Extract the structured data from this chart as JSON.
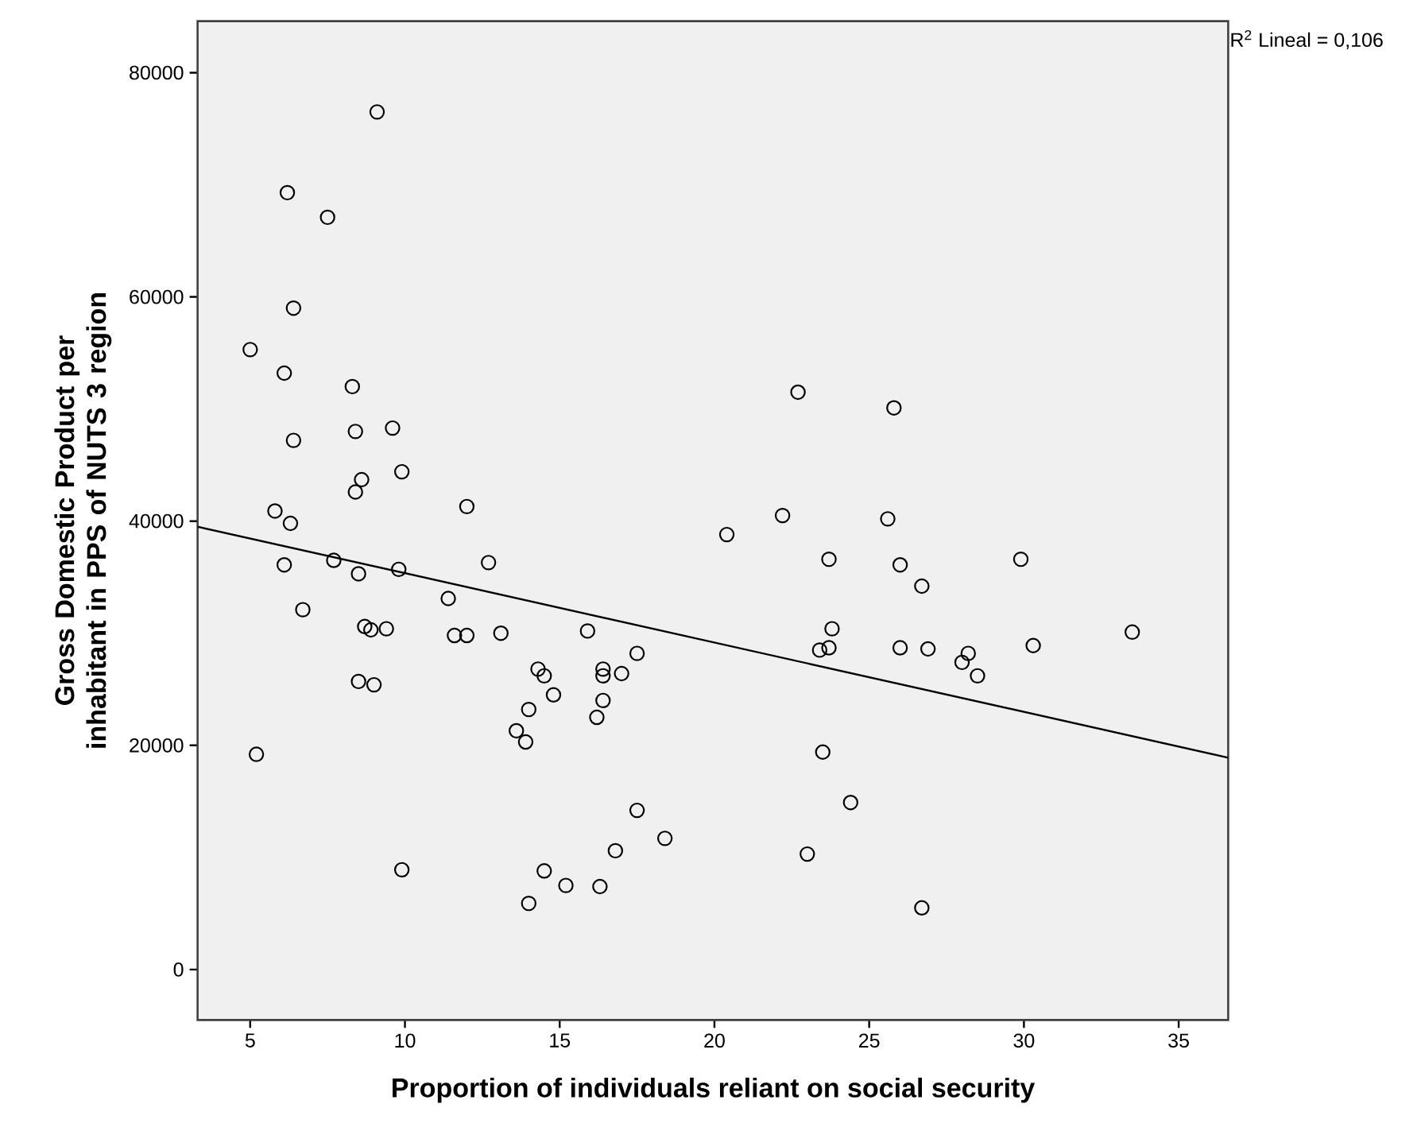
{
  "chart_data": {
    "type": "scatter",
    "xlabel": "Proportion of individuals reliant on social security",
    "ylabel": "Gross Domestic Product per inhabitant in PPS of NUTS 3 region",
    "annotations": [
      "R$^{2}$ Lineal = 0,106"
    ],
    "xlim": [
      3.3,
      36.6
    ],
    "ylim": [
      -4500,
      84600
    ],
    "xticks": [
      5,
      10,
      15,
      20,
      25,
      30,
      35
    ],
    "yticks": [
      0,
      20000,
      40000,
      60000,
      80000
    ],
    "marker": "circle",
    "series": [
      {
        "color": "#000000",
        "x": [
          9.1,
          6.2,
          7.5,
          6.4,
          5.0,
          6.1,
          8.3,
          8.4,
          9.6,
          6.4,
          9.9,
          8.6,
          8.4,
          12.0,
          5.8,
          6.3,
          22.7,
          25.8,
          22.2,
          25.6,
          20.4,
          23.7,
          26.0,
          29.9,
          26.7,
          23.8,
          33.5,
          23.4,
          23.7,
          26.0,
          26.9,
          28.2,
          28.0,
          28.5,
          30.3,
          23.5,
          24.4,
          23.0,
          26.7,
          6.1,
          7.7,
          8.5,
          9.8,
          12.7,
          6.7,
          11.4,
          8.7,
          8.9,
          9.4,
          11.6,
          12.0,
          13.1,
          15.9,
          17.5,
          14.3,
          14.5,
          16.4,
          16.4,
          17.0,
          8.5,
          9.0,
          14.8,
          16.4,
          14.0,
          16.2,
          13.6,
          13.9,
          5.2,
          17.5,
          18.4,
          16.8,
          9.9,
          14.5,
          15.2,
          16.3,
          14.0
        ],
        "values": [
          76500,
          69300,
          67100,
          59000,
          55300,
          53200,
          52000,
          48000,
          48300,
          47200,
          44400,
          43700,
          42600,
          41300,
          40900,
          39800,
          51500,
          50100,
          40500,
          40200,
          38800,
          36600,
          36100,
          36600,
          34200,
          30400,
          30100,
          28500,
          28700,
          28700,
          28600,
          28200,
          27400,
          26200,
          28900,
          19400,
          14900,
          10300,
          5500,
          36100,
          36500,
          35300,
          35700,
          36300,
          32100,
          33100,
          30600,
          30300,
          30400,
          29800,
          29800,
          30000,
          30200,
          28200,
          26800,
          26200,
          26800,
          26200,
          26400,
          25700,
          25400,
          24500,
          24000,
          23200,
          22500,
          21300,
          20300,
          19200,
          14200,
          11700,
          10600,
          8900,
          8800,
          7500,
          7400,
          5900
        ]
      },
      {
        "type": "line",
        "color": "#000000",
        "marker": "none",
        "x": [
          3.3,
          36.6
        ],
        "values": [
          39500,
          18900
        ]
      }
    ]
  }
}
